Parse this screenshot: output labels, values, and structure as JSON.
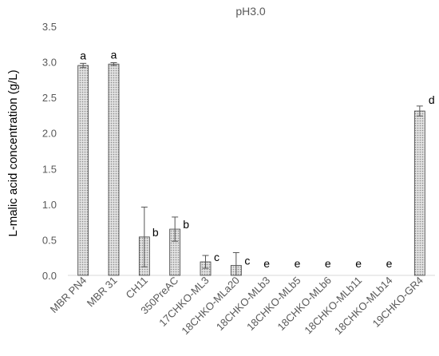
{
  "chart_data": {
    "type": "bar",
    "title": "pH3.0",
    "ylabel": "L-malic acid concentration (g/L)",
    "xlabel": "",
    "ylim": [
      0,
      3.5
    ],
    "yticks": [
      "0.0",
      "0.5",
      "1.0",
      "1.5",
      "2.0",
      "2.5",
      "3.0",
      "3.5"
    ],
    "grid": false,
    "categories": [
      "MBR PN4",
      "MBR 31",
      "CH11",
      "350PreAC",
      "17CHKO-ML3",
      "18CHKO-MLa20",
      "18CHKO-MLb3",
      "18CHKO-MLb5",
      "18CHKO-MLb6",
      "18CHKO-MLb11",
      "18CHKO-MLb14",
      "19CHKO-GR4"
    ],
    "values": [
      2.95,
      2.97,
      0.54,
      0.65,
      0.19,
      0.14,
      0,
      0,
      0,
      0,
      0,
      2.31
    ],
    "error_bars": [
      0.03,
      0.02,
      0.42,
      0.17,
      0.09,
      0.18,
      0,
      0,
      0,
      0,
      0,
      0.07
    ],
    "significance_letters": [
      "a",
      "a",
      "b",
      "b",
      "c",
      "c",
      "e",
      "e",
      "e",
      "e",
      "e",
      "d"
    ],
    "bar_fill": "#c8c8c8",
    "bar_stroke": "#404040"
  }
}
